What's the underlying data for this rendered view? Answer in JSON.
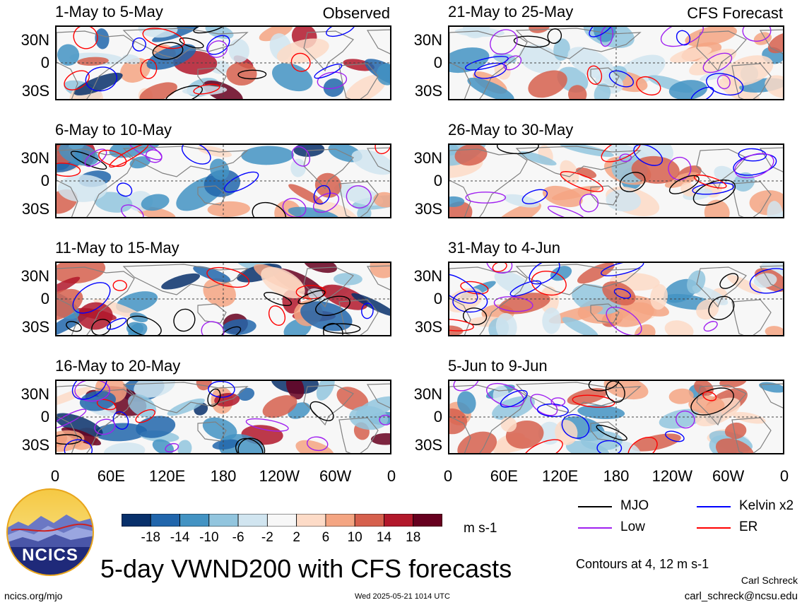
{
  "labels": {
    "observed": "Observed",
    "forecast": "CFS Forecast"
  },
  "left_panels": [
    {
      "title": "1-May to 5-May"
    },
    {
      "title": "6-May to 10-May"
    },
    {
      "title": "11-May to 15-May"
    },
    {
      "title": "16-May to 20-May"
    }
  ],
  "right_panels": [
    {
      "title": "21-May to 25-May"
    },
    {
      "title": "26-May to 30-May"
    },
    {
      "title": "31-May to 4-Jun"
    },
    {
      "title": "5-Jun to 9-Jun"
    }
  ],
  "lat_labels": [
    "30N",
    "0",
    "30S"
  ],
  "lon_labels": [
    "0",
    "60E",
    "120E",
    "180",
    "120W",
    "60W",
    "0"
  ],
  "colorbar": {
    "ticks": [
      "-18",
      "-14",
      "-10",
      "-6",
      "-2",
      "2",
      "6",
      "10",
      "14",
      "18"
    ],
    "colors": [
      "#08306b",
      "#2166ac",
      "#4393c3",
      "#92c5de",
      "#d1e5f0",
      "#f7f7f7",
      "#fddbc7",
      "#f4a582",
      "#d6604d",
      "#b2182b",
      "#67001f"
    ],
    "units": "m s-1"
  },
  "legend": [
    {
      "label": "MJO",
      "color": "#000000"
    },
    {
      "label": "Kelvin x2",
      "color": "#0000ff"
    },
    {
      "label": "Low",
      "color": "#a020f0"
    },
    {
      "label": "ER",
      "color": "#ff0000"
    }
  ],
  "logo": {
    "text": "NCICS"
  },
  "main_title": "5-day VWND200 with CFS forecasts",
  "contours_note": "Contours at 4, 12 m s-1",
  "author": "Carl Schreck",
  "url": "ncics.org/mjo",
  "timestamp": "Wed 2025-05-21 1014 UTC",
  "email": "carl_schreck@ncsu.edu"
}
